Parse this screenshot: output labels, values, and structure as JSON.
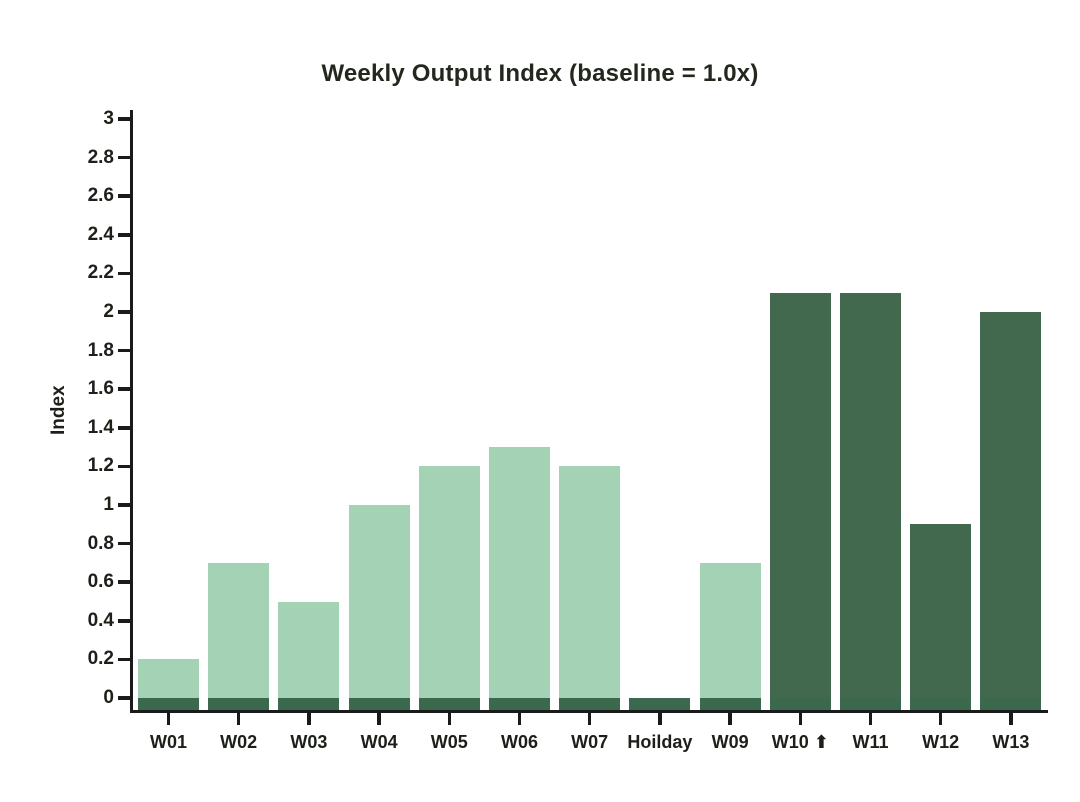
{
  "chart_data": {
    "type": "bar",
    "title": "Weekly Output Index (baseline = 1.0x)",
    "xlabel": "",
    "ylabel": "Index",
    "categories": [
      "W01",
      "W02",
      "W03",
      "W04",
      "W05",
      "W06",
      "W07",
      "Hoilday",
      "W09",
      "W10 ⬆",
      "W11",
      "W12",
      "W13"
    ],
    "values": [
      0.2,
      0.7,
      0.5,
      1.0,
      1.2,
      1.3,
      1.2,
      0.0,
      0.7,
      2.1,
      2.1,
      0.9,
      2.0
    ],
    "bar_styles": [
      "light",
      "light",
      "light",
      "light",
      "light",
      "light",
      "light",
      "dark",
      "light",
      "dark",
      "dark",
      "dark",
      "dark"
    ],
    "ylim": [
      0,
      3
    ],
    "y_ticks": [
      "0",
      "0.2",
      "0.4",
      "0.6",
      "0.8",
      "1",
      "1.2",
      "1.4",
      "1.6",
      "1.8",
      "2",
      "2.2",
      "2.4",
      "2.6",
      "2.8",
      "3"
    ],
    "grid": false,
    "legend": false,
    "background": "#ffffff",
    "colors": {
      "bar_light": "#a3d3b4",
      "bar_dark": "#42694e",
      "base_strip": "#3c684e",
      "axis": "#1a1a1a",
      "text": "#1c2019",
      "title_text": "#23281e"
    },
    "base_strip_units": 0.06
  }
}
